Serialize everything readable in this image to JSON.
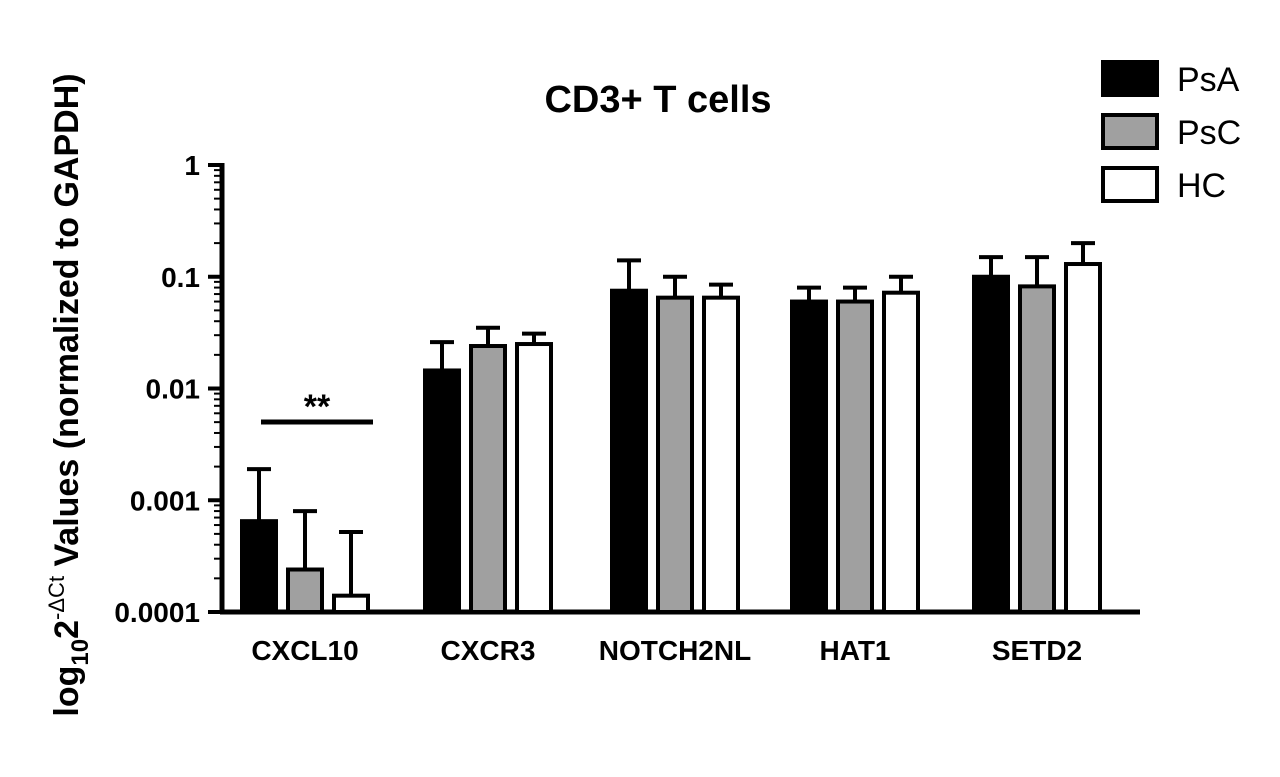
{
  "chart_data": {
    "type": "bar",
    "title": "CD3+ T cells",
    "ylabel_parts": {
      "prefix": "log",
      "sub": "10",
      "mid": "2",
      "sup": "-ΔCt",
      "suffix": " Values (normalized to GAPDH)"
    },
    "yscale": "log",
    "ylim": [
      0.0001,
      1
    ],
    "yticks": [
      "0.0001",
      "0.001",
      "0.01",
      "0.1",
      "1"
    ],
    "categories": [
      "CXCL10",
      "CXCR3",
      "NOTCH2NL",
      "HAT1",
      "SETD2"
    ],
    "series": [
      {
        "name": "PsA",
        "color": "#000000",
        "values": [
          0.00065,
          0.0145,
          0.075,
          0.06,
          0.1
        ],
        "error_upper": [
          0.0019,
          0.026,
          0.14,
          0.08,
          0.15
        ]
      },
      {
        "name": "PsC",
        "color": "#a0a0a0",
        "values": [
          0.00024,
          0.024,
          0.065,
          0.06,
          0.082
        ],
        "error_upper": [
          0.0008,
          0.035,
          0.1,
          0.08,
          0.15
        ]
      },
      {
        "name": "HC",
        "color": "#ffffff",
        "values": [
          0.00014,
          0.025,
          0.065,
          0.072,
          0.13
        ],
        "error_upper": [
          0.00052,
          0.031,
          0.085,
          0.1,
          0.2
        ]
      }
    ],
    "annotations": [
      {
        "text": "**",
        "category": "CXCL10"
      }
    ],
    "legend": "top-right",
    "grid": false
  }
}
